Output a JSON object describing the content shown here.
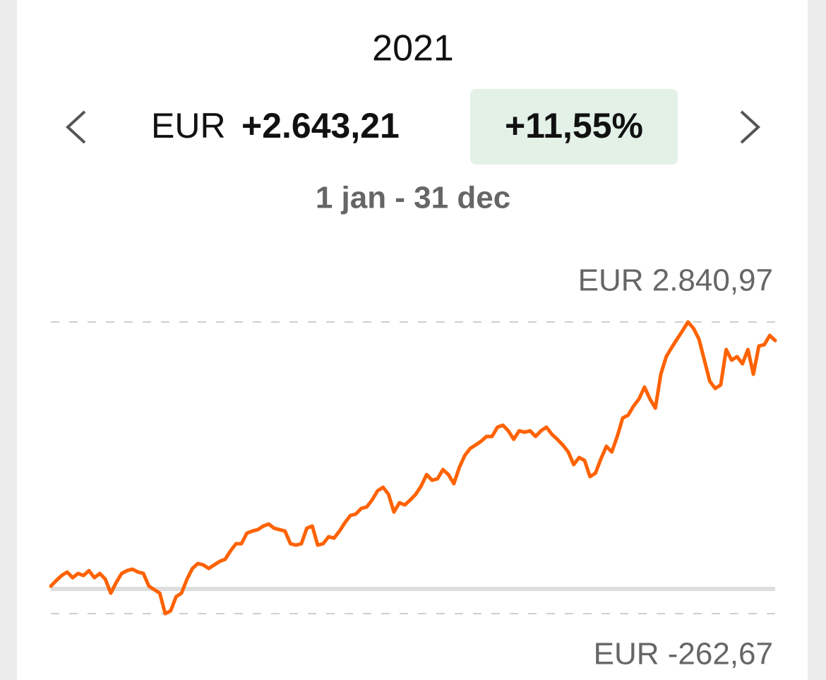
{
  "header": {
    "year": "2021",
    "currency": "EUR",
    "amount": "+2.643,21",
    "percent": "+11,55%",
    "period": "1 jan - 31 dec"
  },
  "chart_data": {
    "type": "line",
    "color": "#ff6200",
    "values": [
      30,
      90,
      143,
      180,
      120,
      165,
      143,
      195,
      120,
      165,
      105,
      -45,
      68,
      165,
      195,
      210,
      180,
      165,
      30,
      -8,
      -45,
      -262.67,
      -233,
      -83,
      -45,
      105,
      218,
      271,
      256,
      218,
      256,
      293,
      316,
      406,
      481,
      481,
      594,
      616,
      631,
      669,
      691,
      646,
      631,
      616,
      481,
      466,
      481,
      646,
      669,
      466,
      481,
      556,
      541,
      616,
      706,
      782,
      797,
      857,
      872,
      947,
      1045,
      1082,
      1007,
      819,
      917,
      894,
      947,
      1007,
      1097,
      1217,
      1157,
      1172,
      1270,
      1217,
      1120,
      1293,
      1420,
      1495,
      1533,
      1571,
      1623,
      1623,
      1721,
      1743,
      1683,
      1593,
      1683,
      1668,
      1683,
      1623,
      1683,
      1721,
      1646,
      1593,
      1533,
      1458,
      1323,
      1398,
      1368,
      1195,
      1232,
      1383,
      1518,
      1458,
      1623,
      1819,
      1849,
      1946,
      2022,
      2149,
      2022,
      1924,
      2285,
      2472,
      2570,
      2660,
      2750,
      2840.97,
      2773,
      2660,
      2435,
      2210,
      2134,
      2172,
      2548,
      2435,
      2472,
      2397,
      2548,
      2285,
      2585,
      2600,
      2698,
      2643.21
    ],
    "ylim": [
      -262.67,
      2840.97
    ],
    "yticks": [
      {
        "value": -262.67,
        "label": "EUR -262,67"
      },
      {
        "value": 2840.97,
        "label": "EUR 2.840,97"
      }
    ]
  }
}
